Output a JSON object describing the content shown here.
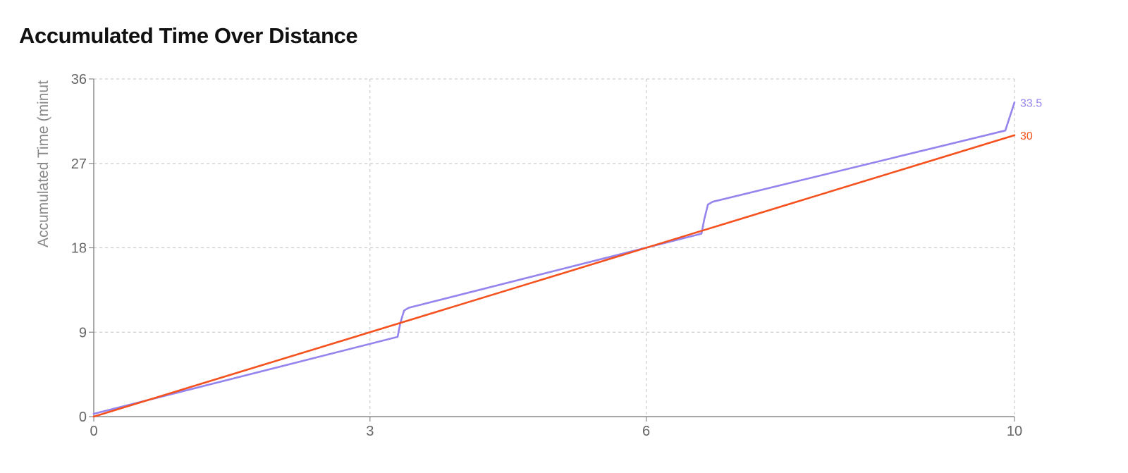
{
  "title": "Accumulated Time Over Distance",
  "colors": {
    "actual": "#9485ee",
    "target": "#f4511e",
    "grid": "#cccccc",
    "axis": "#888888",
    "tick_text": "#666666"
  },
  "chart_data": {
    "type": "line",
    "title": "Accumulated Time Over Distance",
    "xlabel": "",
    "ylabel": "Accumulated Time (minut",
    "xlim": [
      0,
      10
    ],
    "ylim": [
      0,
      36
    ],
    "x_ticks": [
      0,
      3,
      6,
      10
    ],
    "y_ticks": [
      0,
      9,
      18,
      27,
      36
    ],
    "x_tick_labels": [
      "0",
      "3",
      "6",
      "10"
    ],
    "y_tick_labels": [
      "0",
      "9",
      "18",
      "27",
      "36"
    ],
    "grid": true,
    "legend": "none",
    "series": [
      {
        "key": "actual",
        "x": [
          0,
          3.3,
          3.33,
          3.37,
          3.42,
          6.6,
          6.63,
          6.67,
          6.72,
          9.9,
          10
        ],
        "y": [
          0.3,
          8.5,
          10.0,
          11.3,
          11.6,
          19.5,
          21.0,
          22.6,
          22.9,
          30.5,
          33.5
        ],
        "end_label": "33.5"
      },
      {
        "key": "target",
        "x": [
          0,
          10
        ],
        "y": [
          0,
          30
        ],
        "end_label": "30"
      }
    ]
  }
}
